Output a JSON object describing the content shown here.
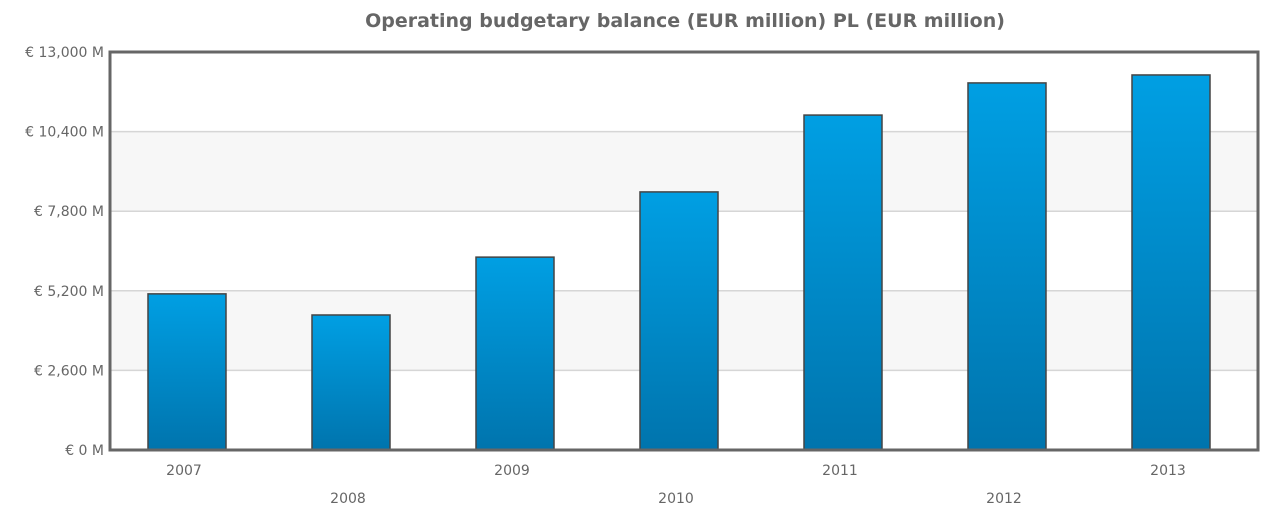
{
  "chart_data": {
    "type": "bar",
    "title": "Operating budgetary balance (EUR million) PL (EUR million)",
    "xlabel": "",
    "ylabel": "",
    "categories": [
      "2007",
      "2008",
      "2009",
      "2010",
      "2011",
      "2012",
      "2013"
    ],
    "values": [
      5100,
      4410,
      6300,
      8430,
      10940,
      11990,
      12250
    ],
    "ylim": [
      0,
      13000
    ],
    "y_ticks": [
      0,
      2600,
      5200,
      7800,
      10400,
      13000
    ],
    "y_tick_labels": [
      "€ 0 M",
      "€ 2,600 M",
      "€ 5,200 M",
      "€ 7,800 M",
      "€ 10,400 M",
      "€ 13,000 M"
    ],
    "grid": true,
    "legend": "none",
    "colors": {
      "bar_top": "#009fe3",
      "bar_bottom": "#0074ad",
      "bar_border": "#444444",
      "band": "#f7f7f7"
    }
  }
}
